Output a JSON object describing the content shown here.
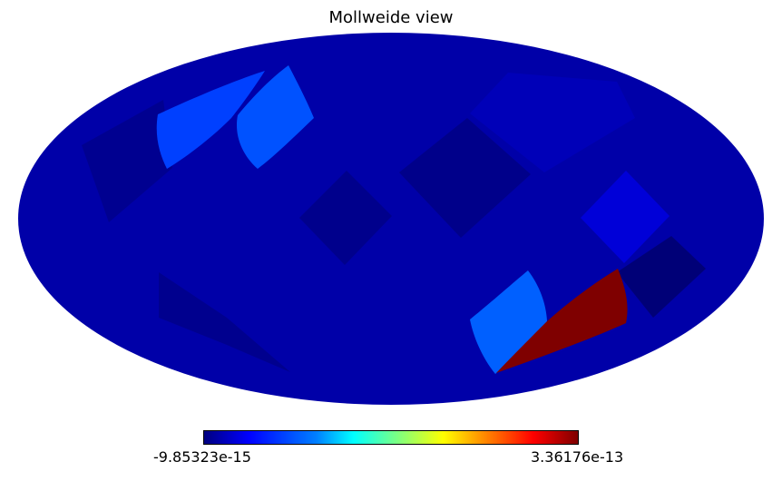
{
  "chart_data": {
    "type": "heatmap",
    "title": "Mollweide view",
    "projection": "mollweide",
    "colormap": "jet",
    "colorbar": {
      "min_label": "-9.85323e-15",
      "max_label": "3.36176e-13"
    },
    "grid": false,
    "background_value_color": "#0000a8",
    "patches": [
      {
        "id": "north-far-left",
        "value": "light-blue",
        "color": "#0040ff"
      },
      {
        "id": "north-left",
        "value": "light-blue",
        "color": "#0052ff"
      },
      {
        "id": "south-center",
        "value": "light-blue",
        "color": "#0060ff"
      },
      {
        "id": "south-right",
        "value": "max",
        "color": "#7f0000"
      },
      {
        "id": "dark-center",
        "value": "low",
        "color": "#00008c"
      },
      {
        "id": "dark-east",
        "value": "low",
        "color": "#00008a"
      },
      {
        "id": "dark-southeast",
        "value": "low",
        "color": "#000077"
      },
      {
        "id": "dark-west",
        "value": "low",
        "color": "#000090"
      },
      {
        "id": "dark-southwest",
        "value": "low",
        "color": "#00008e"
      },
      {
        "id": "bright-east",
        "value": "mid-low",
        "color": "#0000d8"
      },
      {
        "id": "bright-northeast",
        "value": "mid-low",
        "color": "#0000b8"
      }
    ]
  }
}
